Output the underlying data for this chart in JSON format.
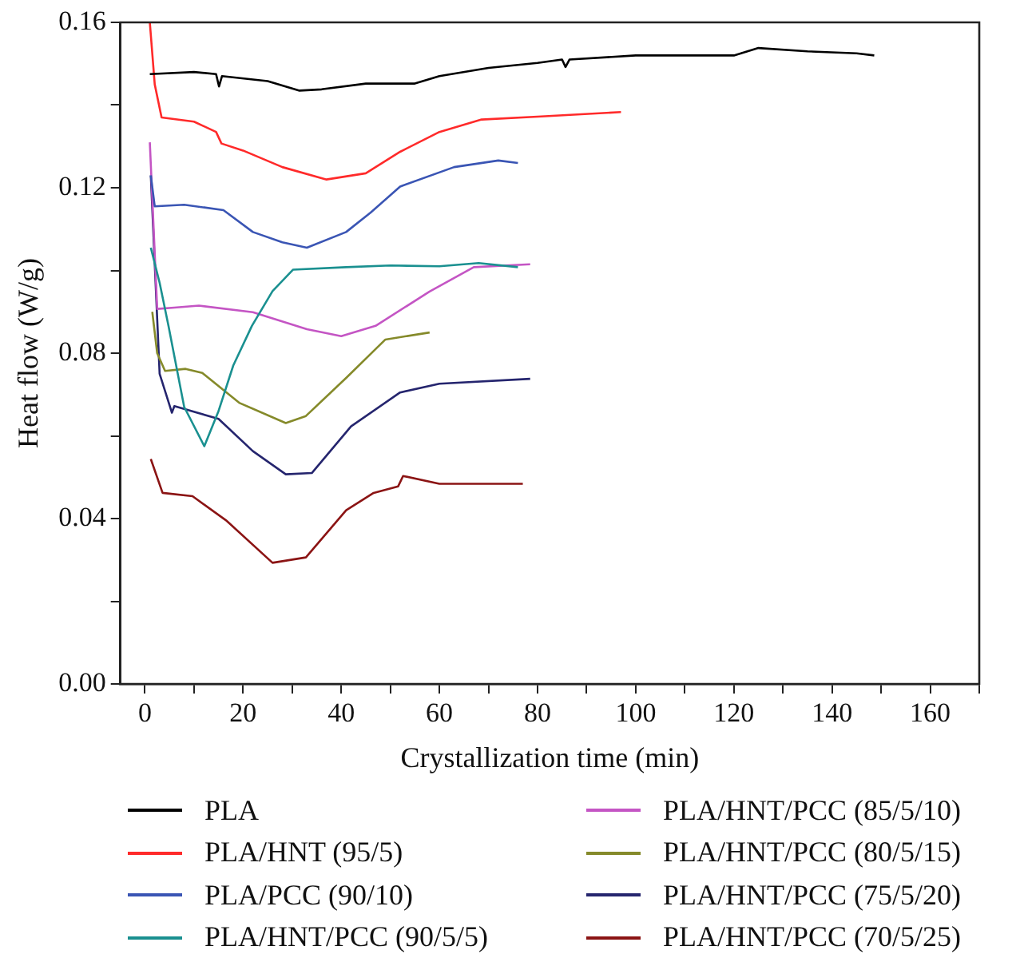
{
  "chart_data": {
    "type": "line",
    "xlabel": "Crystallization time (min)",
    "ylabel": "Heat flow (W/g)",
    "xlim": [
      -5,
      170
    ],
    "ylim": [
      0,
      0.16
    ],
    "xticks": [
      0,
      {
        "value": 10,
        "label": null
      },
      20,
      {
        "value": 30,
        "label": null
      },
      40,
      {
        "value": 50,
        "label": null
      },
      60,
      {
        "value": 70,
        "label": null
      },
      80,
      {
        "value": 90,
        "label": null
      },
      100,
      {
        "value": 110,
        "label": null
      },
      120,
      {
        "value": 130,
        "label": null
      },
      140,
      {
        "value": 150,
        "label": null
      },
      160,
      {
        "value": 170,
        "label": null
      }
    ],
    "yticks": [
      {
        "value": 0,
        "label": "0.00"
      },
      {
        "value": 0.02,
        "label": null
      },
      {
        "value": 0.04,
        "label": "0.04"
      },
      {
        "value": 0.06,
        "label": null
      },
      {
        "value": 0.08,
        "label": "0.08"
      },
      {
        "value": 0.1,
        "label": null
      },
      {
        "value": 0.12,
        "label": "0.12"
      },
      {
        "value": 0.14,
        "label": null
      },
      {
        "value": 0.16,
        "label": "0.16"
      }
    ],
    "grid": false,
    "legend": "bottom",
    "marker": "none",
    "line_style": "solid",
    "series": [
      {
        "name": "PLA",
        "color": "#000000",
        "x": [
          1,
          10,
          14.5,
          15.1,
          15.7,
          25,
          31.5,
          36,
          45,
          55,
          60,
          70,
          80,
          85,
          85.7,
          86.5,
          100,
          120,
          125,
          135,
          145,
          148.6
        ],
        "values": [
          0.1475,
          0.148,
          0.1475,
          0.1445,
          0.147,
          0.1458,
          0.1435,
          0.1438,
          0.1452,
          0.1452,
          0.147,
          0.149,
          0.1502,
          0.151,
          0.1492,
          0.151,
          0.152,
          0.152,
          0.1538,
          0.153,
          0.1525,
          0.152
        ]
      },
      {
        "name": "PLA/HNT (95/5)",
        "color": "#ff2a2a",
        "x": [
          1,
          2,
          3.4,
          10,
          14.5,
          15.6,
          20,
          28,
          37,
          45,
          52,
          60,
          68.6,
          80,
          97
        ],
        "values": [
          0.16,
          0.145,
          0.137,
          0.136,
          0.1335,
          0.1307,
          0.129,
          0.125,
          0.122,
          0.1235,
          0.1287,
          0.1335,
          0.1365,
          0.1372,
          0.1383
        ]
      },
      {
        "name": "PLA/PCC (90/10)",
        "color": "#3a55b4",
        "x": [
          1.2,
          2,
          8,
          16,
          22,
          28,
          33,
          41,
          46,
          52,
          63,
          72,
          76
        ],
        "values": [
          0.123,
          0.1155,
          0.1159,
          0.1146,
          0.1093,
          0.1068,
          0.1055,
          0.1093,
          0.114,
          0.1203,
          0.125,
          0.1266,
          0.126
        ]
      },
      {
        "name": "PLA/HNT/PCC (90/5/5)",
        "color": "#1a9090",
        "x": [
          1.2,
          3,
          4.8,
          8,
          12.1,
          15,
          18,
          21.8,
          26,
          30.2,
          41,
          50,
          60,
          68,
          76
        ],
        "values": [
          0.1055,
          0.097,
          0.0866,
          0.067,
          0.0575,
          0.066,
          0.077,
          0.0866,
          0.095,
          0.1002,
          0.1008,
          0.1012,
          0.101,
          0.1018,
          0.1008
        ]
      },
      {
        "name": "PLA/HNT/PCC (85/5/10)",
        "color": "#c455c4",
        "x": [
          1,
          2.5,
          6,
          11,
          22,
          33,
          40,
          47,
          58,
          67,
          78.5
        ],
        "values": [
          0.131,
          0.0907,
          0.091,
          0.0915,
          0.0899,
          0.0858,
          0.0841,
          0.0866,
          0.0949,
          0.1008,
          0.1015
        ]
      },
      {
        "name": "PLA/HNT/PCC (80/5/15)",
        "color": "#858a2a",
        "x": [
          1.5,
          2.5,
          4.1,
          8.3,
          11.7,
          19.2,
          28.7,
          32.8,
          41,
          49,
          58
        ],
        "values": [
          0.09,
          0.08,
          0.0757,
          0.0762,
          0.0752,
          0.068,
          0.0631,
          0.0648,
          0.074,
          0.0833,
          0.085
        ]
      },
      {
        "name": "PLA/HNT/PCC (75/5/20)",
        "color": "#25256e",
        "x": [
          1.2,
          3,
          5.5,
          6,
          15,
          22,
          28.7,
          34,
          42,
          52,
          60,
          78.5
        ],
        "values": [
          0.123,
          0.075,
          0.0656,
          0.0672,
          0.0641,
          0.0563,
          0.0507,
          0.051,
          0.0623,
          0.0705,
          0.0726,
          0.0738
        ]
      },
      {
        "name": "PLA/HNT/PCC (70/5/25)",
        "color": "#8b1414",
        "x": [
          1.2,
          3.6,
          9.7,
          16.5,
          26,
          32.8,
          41,
          46.6,
          51.6,
          52.6,
          60,
          77
        ],
        "values": [
          0.0544,
          0.0462,
          0.0454,
          0.0396,
          0.0293,
          0.0306,
          0.042,
          0.0462,
          0.0478,
          0.0503,
          0.0484,
          0.0484
        ]
      }
    ]
  }
}
